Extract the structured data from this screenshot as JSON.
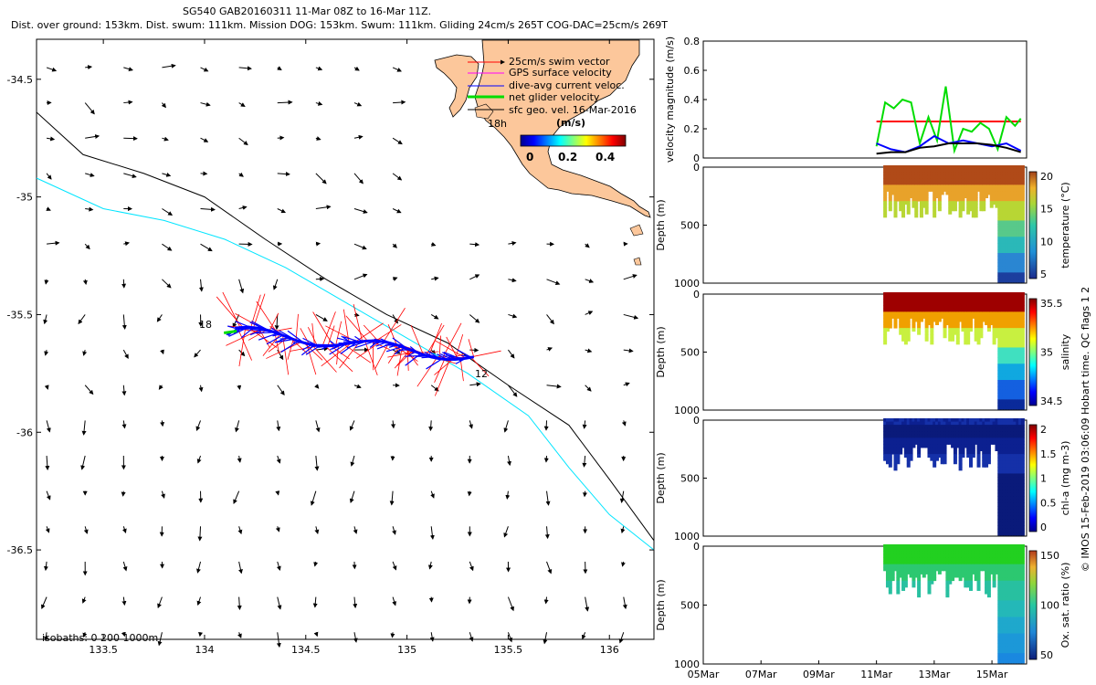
{
  "header": {
    "title_line1": "SG540 GAB20160311 11-Mar 08Z to 16-Mar 11Z.",
    "title_line2": "Dist. over ground: 153km. Dist. swum: 111km. Mission DOG: 153km. Swum: 111km. Gliding 24cm/s 265T COG-DAC=25cm/s 269T"
  },
  "map": {
    "xticks": [
      "133.5",
      "134",
      "134.5",
      "135",
      "135.5",
      "136"
    ],
    "yticks": [
      "-34.5",
      "-35",
      "-35.5",
      "-36",
      "-36.5"
    ],
    "legend": [
      {
        "label": "25cm/s swim vector",
        "color": "#ff0000"
      },
      {
        "label": "GPS surface velocity",
        "color": "#ff00ff"
      },
      {
        "label": "dive-avg current veloc.",
        "color": "#0000ff"
      },
      {
        "label": "net glider velocity",
        "color": "#00dd00"
      },
      {
        "label": "sfc geo. vel. 16-Mar-2016",
        "color": "#000000"
      }
    ],
    "colorbar_unit": "(m/s)",
    "colorbar_ticks": [
      "0",
      "0.2",
      "0.4"
    ],
    "inset_label": "18h",
    "track_start_label": "18",
    "track_end_label": "12",
    "isobath_note": "isobaths: 0   200  1000m",
    "colors": {
      "land": "#fcc79b",
      "isobath_200": "#000000",
      "isobath_1000": "#00e5ff"
    }
  },
  "panels": [
    {
      "id": "velocity",
      "ylabel": "velocity magnitude (m/s)",
      "yticks": [
        "0.8",
        "0.6",
        "0.4",
        "0.2",
        "0"
      ]
    },
    {
      "id": "temperature",
      "ylabel": "Depth (m)",
      "yticks": [
        "0",
        "500",
        "1000"
      ],
      "cbar_label": "temperature (°C)",
      "cbar_ticks": [
        "20",
        "15",
        "10",
        "5"
      ]
    },
    {
      "id": "salinity",
      "ylabel": "Depth (m)",
      "yticks": [
        "0",
        "500",
        "1000"
      ],
      "cbar_label": "salinity",
      "cbar_ticks": [
        "35.5",
        "35",
        "34.5"
      ]
    },
    {
      "id": "chla",
      "ylabel": "Depth (m)",
      "yticks": [
        "0",
        "500",
        "1000"
      ],
      "cbar_label": "chl-a (mg m-3)",
      "cbar_ticks": [
        "2",
        "1.5",
        "1",
        "0.5",
        "0"
      ]
    },
    {
      "id": "oxygen",
      "ylabel": "Depth (m)",
      "yticks": [
        "0",
        "500",
        "1000"
      ],
      "cbar_label": "Ox. sat. ratio (%)",
      "cbar_ticks": [
        "150",
        "100",
        "50"
      ]
    }
  ],
  "time_axis": {
    "ticks": [
      "05Mar",
      "07Mar",
      "09Mar",
      "11Mar",
      "13Mar",
      "15Mar"
    ]
  },
  "credit": "© IMOS 15-Feb-2019 03:06:09 Hobart time. QC flags 1  2",
  "chart_data": [
    {
      "type": "scatter",
      "title": "SG540 GAB20160311 11-Mar 08Z to 16-Mar 11Z.",
      "xlabel": "",
      "ylabel": "",
      "xlim": [
        133.17,
        136.22
      ],
      "ylim": [
        -36.88,
        -34.33
      ],
      "grid": false,
      "series": [
        {
          "name": "25cm/s swim vector",
          "values": []
        },
        {
          "name": "dive-avg current veloc.",
          "values": []
        },
        {
          "name": "net glider velocity",
          "values": []
        },
        {
          "name": "sfc geo. vel. 16-Mar-2016",
          "values": []
        }
      ],
      "glider_track": {
        "start": [
          135.33,
          -35.68
        ],
        "end": [
          134.15,
          -35.57
        ]
      },
      "isobath_200": [
        [
          133.17,
          -34.64
        ],
        [
          133.4,
          -34.82
        ],
        [
          133.7,
          -34.9
        ],
        [
          134.0,
          -35.0
        ],
        [
          134.3,
          -35.18
        ],
        [
          134.6,
          -35.35
        ],
        [
          134.9,
          -35.5
        ],
        [
          135.2,
          -35.62
        ],
        [
          135.5,
          -35.8
        ],
        [
          135.8,
          -35.97
        ],
        [
          136.0,
          -36.2
        ],
        [
          136.22,
          -36.46
        ]
      ],
      "isobath_1000": [
        [
          133.17,
          -34.92
        ],
        [
          133.5,
          -35.05
        ],
        [
          133.8,
          -35.1
        ],
        [
          134.1,
          -35.18
        ],
        [
          134.4,
          -35.3
        ],
        [
          134.7,
          -35.45
        ],
        [
          135.0,
          -35.6
        ],
        [
          135.3,
          -35.75
        ],
        [
          135.6,
          -35.93
        ],
        [
          135.8,
          -36.15
        ],
        [
          136.0,
          -36.35
        ],
        [
          136.22,
          -36.5
        ]
      ]
    },
    {
      "type": "line",
      "xlabel": "",
      "ylabel": "velocity magnitude (m/s)",
      "xlim": [
        "05Mar",
        "16Mar"
      ],
      "ylim": [
        0,
        0.8
      ],
      "series": [
        {
          "color": "#ff0000",
          "x": [
            11.0,
            16.0
          ],
          "values": [
            0.25,
            0.25
          ]
        },
        {
          "color": "#00dd00",
          "x": [
            11.0,
            11.3,
            11.6,
            11.9,
            12.2,
            12.5,
            12.8,
            13.1,
            13.4,
            13.7,
            14.0,
            14.3,
            14.6,
            14.9,
            15.2,
            15.5,
            15.8,
            16.0
          ],
          "values": [
            0.08,
            0.38,
            0.34,
            0.4,
            0.38,
            0.1,
            0.28,
            0.12,
            0.49,
            0.05,
            0.2,
            0.18,
            0.24,
            0.2,
            0.06,
            0.28,
            0.22,
            0.27
          ]
        },
        {
          "color": "#0000ff",
          "x": [
            11.0,
            11.5,
            12.0,
            12.5,
            13.0,
            13.5,
            14.0,
            14.5,
            15.0,
            15.5,
            16.0
          ],
          "values": [
            0.1,
            0.06,
            0.04,
            0.08,
            0.15,
            0.1,
            0.12,
            0.1,
            0.08,
            0.1,
            0.05
          ]
        },
        {
          "color": "#000000",
          "x": [
            11.0,
            11.5,
            12.0,
            12.5,
            13.0,
            13.5,
            14.0,
            14.5,
            15.0,
            15.5,
            16.0
          ],
          "values": [
            0.03,
            0.04,
            0.04,
            0.07,
            0.08,
            0.1,
            0.1,
            0.1,
            0.09,
            0.07,
            0.04
          ]
        }
      ]
    },
    {
      "type": "scatter",
      "ylabel": "Depth (m)",
      "ylim": [
        1000,
        0
      ],
      "colorbar_label": "temperature (°C)",
      "clim": [
        3,
        22
      ],
      "values": []
    },
    {
      "type": "scatter",
      "ylabel": "Depth (m)",
      "ylim": [
        1000,
        0
      ],
      "colorbar_label": "salinity",
      "clim": [
        34.2,
        35.9
      ],
      "values": []
    },
    {
      "type": "scatter",
      "ylabel": "Depth (m)",
      "ylim": [
        1000,
        0
      ],
      "colorbar_label": "chl-a (mg m-3)",
      "clim": [
        0,
        2
      ],
      "values": []
    },
    {
      "type": "scatter",
      "ylabel": "Depth (m)",
      "ylim": [
        1000,
        0
      ],
      "colorbar_label": "Ox. sat. ratio (%)",
      "clim": [
        30,
        170
      ],
      "values": []
    }
  ]
}
